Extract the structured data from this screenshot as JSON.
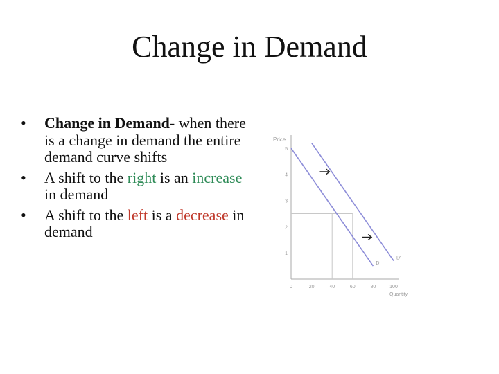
{
  "slide": {
    "title": "Change in Demand",
    "bullets": [
      {
        "bullet_char": "•",
        "bold": "Change in Demand",
        "rest": "- when there is a change in demand the entire demand curve shifts"
      },
      {
        "bullet_char": "•",
        "before": "A shift to the ",
        "highlight": "right",
        "middle": " is an ",
        "highlight2": "increase",
        "after": " in demand"
      },
      {
        "bullet_char": "•",
        "before": "A shift to the ",
        "highlight": "left",
        "middle": " is a ",
        "highlight2": "decrease",
        "after": " in demand"
      }
    ]
  },
  "colors": {
    "increase": "#2e8b57",
    "decrease": "#c0392b",
    "curve": "#8c8cd8",
    "axis": "#aaaaaa"
  },
  "chart_data": {
    "type": "line",
    "xlabel": "Quantity",
    "ylabel": "Price",
    "x_ticks": [
      "0",
      "20",
      "40",
      "60",
      "80",
      "100"
    ],
    "y_ticks": [
      "1",
      "2",
      "3",
      "4",
      "5"
    ],
    "xlim": [
      0,
      100
    ],
    "ylim": [
      0,
      5.5
    ],
    "series": [
      {
        "name": "D",
        "x": [
          0,
          80
        ],
        "y": [
          5,
          0.5
        ]
      },
      {
        "name": "D'",
        "x": [
          20,
          100
        ],
        "y": [
          5.2,
          0.7
        ]
      }
    ],
    "reference_lines": {
      "price": 2.5,
      "quantities": [
        40,
        60
      ]
    },
    "arrows": [
      {
        "at": [
          28,
          4.1
        ]
      },
      {
        "at": [
          69,
          1.6
        ]
      }
    ]
  }
}
